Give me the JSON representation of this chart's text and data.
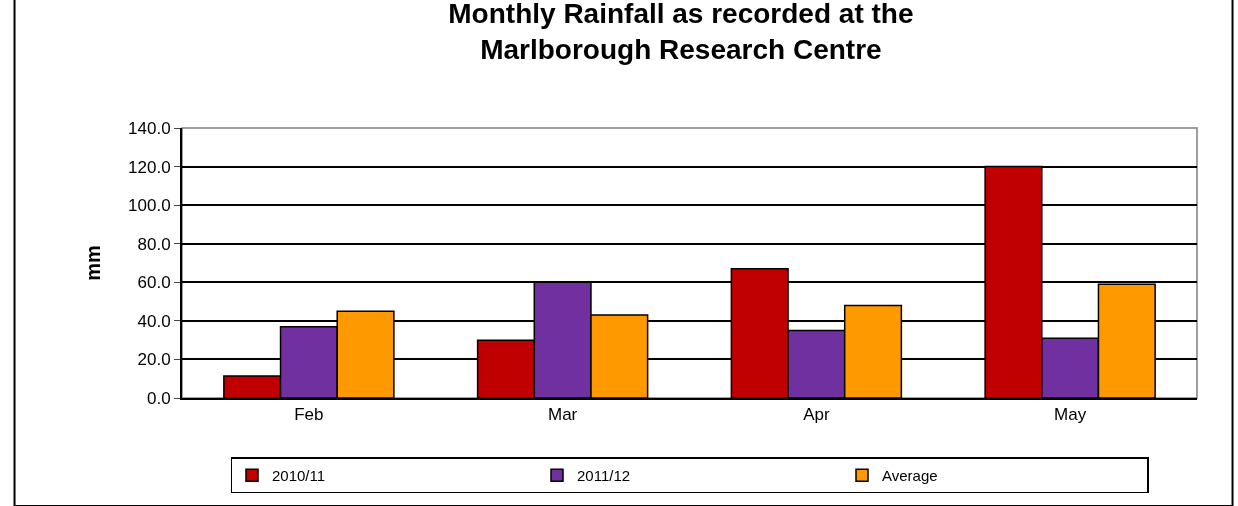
{
  "chart_data": {
    "type": "bar",
    "title": "Monthly Rainfall as recorded at the\nMarlborough Research Centre",
    "ylabel": "mm",
    "categories": [
      "Feb",
      "Mar",
      "Apr",
      "May"
    ],
    "series": [
      {
        "name": "2010/11",
        "color": "#c00000",
        "values": [
          11.4,
          30,
          67,
          120
        ]
      },
      {
        "name": "2011/12",
        "color": "#7030a0",
        "values": [
          37,
          60,
          35,
          31
        ]
      },
      {
        "name": "Average",
        "color": "#ff9900",
        "values": [
          45,
          43,
          48,
          59
        ]
      }
    ],
    "ylim": [
      0,
      140
    ],
    "yticks": [
      {
        "value": 0,
        "label": "0.0"
      },
      {
        "value": 20,
        "label": "20.0"
      },
      {
        "value": 40,
        "label": "40.0"
      },
      {
        "value": 60,
        "label": "60.0"
      },
      {
        "value": 80,
        "label": "80.0"
      },
      {
        "value": 100,
        "label": "100.0"
      },
      {
        "value": 120,
        "label": "120.0"
      },
      {
        "value": 140,
        "label": "140.0"
      }
    ],
    "grid": "y",
    "legend": "bottom"
  }
}
